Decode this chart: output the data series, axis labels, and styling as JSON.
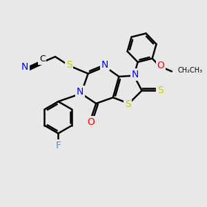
{
  "bg_color": "#e8e8e8",
  "bond_color": "#000000",
  "bond_width": 1.8,
  "N_color": "#0000ff",
  "S_color": "#cccc00",
  "O_color": "#ff0000",
  "F_color": "#3399ff",
  "C_color": "#000000",
  "figsize": [
    3.0,
    3.0
  ],
  "dpi": 100,
  "xlim": [
    0,
    10
  ],
  "ylim": [
    0,
    10
  ]
}
